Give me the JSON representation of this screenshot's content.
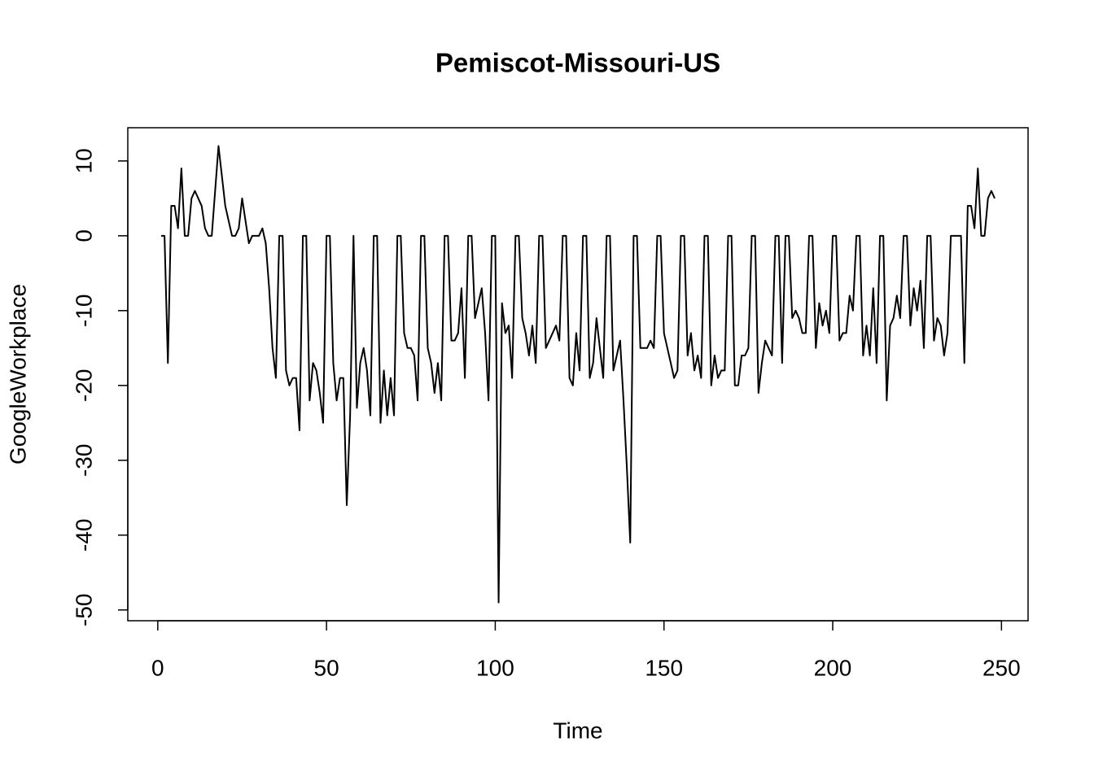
{
  "chart_data": {
    "type": "line",
    "title": "Pemiscot-Missouri-US",
    "x_label": "Time",
    "y_label": "GoogleWorkplace",
    "x": [
      1,
      2,
      3,
      4,
      5,
      6,
      7,
      8,
      9,
      10,
      11,
      12,
      13,
      14,
      15,
      16,
      17,
      18,
      19,
      20,
      21,
      22,
      23,
      24,
      25,
      26,
      27,
      28,
      29,
      30,
      31,
      32,
      33,
      34,
      35,
      36,
      37,
      38,
      39,
      40,
      41,
      42,
      43,
      44,
      45,
      46,
      47,
      48,
      49,
      50,
      51,
      52,
      53,
      54,
      55,
      56,
      57,
      58,
      59,
      60,
      61,
      62,
      63,
      64,
      65,
      66,
      67,
      68,
      69,
      70,
      71,
      72,
      73,
      74,
      75,
      76,
      77,
      78,
      79,
      80,
      81,
      82,
      83,
      84,
      85,
      86,
      87,
      88,
      89,
      90,
      91,
      92,
      93,
      94,
      95,
      96,
      97,
      98,
      99,
      100,
      101,
      102,
      103,
      104,
      105,
      106,
      107,
      108,
      109,
      110,
      111,
      112,
      113,
      114,
      115,
      116,
      117,
      118,
      119,
      120,
      121,
      122,
      123,
      124,
      125,
      126,
      127,
      128,
      129,
      130,
      131,
      132,
      133,
      134,
      135,
      136,
      137,
      138,
      139,
      140,
      141,
      142,
      143,
      144,
      145,
      146,
      147,
      148,
      149,
      150,
      151,
      152,
      153,
      154,
      155,
      156,
      157,
      158,
      159,
      160,
      161,
      162,
      163,
      164,
      165,
      166,
      167,
      168,
      169,
      170,
      171,
      172,
      173,
      174,
      175,
      176,
      177,
      178,
      179,
      180,
      181,
      182,
      183,
      184,
      185,
      186,
      187,
      188,
      189,
      190,
      191,
      192,
      193,
      194,
      195,
      196,
      197,
      198,
      199,
      200,
      201,
      202,
      203,
      204,
      205,
      206,
      207,
      208,
      209,
      210,
      211,
      212,
      213,
      214,
      215,
      216,
      217,
      218,
      219,
      220,
      221,
      222,
      223,
      224,
      225,
      226,
      227,
      228,
      229,
      230,
      231,
      232,
      233,
      234,
      235,
      236,
      237,
      238,
      239,
      240,
      241,
      242,
      243,
      244,
      245,
      246,
      247,
      248
    ],
    "series": [
      {
        "name": "GoogleWorkplace",
        "color": "#000000",
        "values": [
          0,
          0,
          -17,
          4,
          4,
          1,
          9,
          0,
          0,
          5,
          6,
          5,
          4,
          1,
          0,
          0,
          6,
          12,
          8,
          4,
          2,
          0,
          0,
          1,
          5,
          2,
          -1,
          0,
          0,
          0,
          1,
          -1,
          -7,
          -15,
          -19,
          0,
          0,
          -18,
          -20,
          -19,
          -19,
          -26,
          0,
          0,
          -22,
          -17,
          -18,
          -21,
          -25,
          0,
          0,
          -17,
          -22,
          -19,
          -19,
          -36,
          -24,
          0,
          -23,
          -17,
          -15,
          -18,
          -24,
          0,
          0,
          -25,
          -18,
          -24,
          -19,
          -24,
          0,
          0,
          -13,
          -15,
          -15,
          -16,
          -22,
          0,
          0,
          -15,
          -17,
          -21,
          -17,
          -22,
          0,
          0,
          -14,
          -14,
          -13,
          -7,
          -19,
          0,
          0,
          -11,
          -9,
          -7,
          -13,
          -22,
          0,
          0,
          -49,
          -9,
          -13,
          -12,
          -19,
          0,
          0,
          -11,
          -13,
          -16,
          -12,
          -17,
          0,
          0,
          -15,
          -14,
          -13,
          -12,
          -14,
          0,
          0,
          -19,
          -20,
          -13,
          -18,
          0,
          0,
          -19,
          -17,
          -11,
          -15,
          -19,
          0,
          0,
          -18,
          -16,
          -14,
          -22,
          -31,
          -41,
          0,
          0,
          -15,
          -15,
          -15,
          -14,
          -15,
          0,
          0,
          -13,
          -15,
          -17,
          -19,
          -18,
          0,
          0,
          -16,
          -13,
          -18,
          -16,
          -19,
          0,
          0,
          -20,
          -16,
          -19,
          -18,
          -18,
          0,
          0,
          -20,
          -20,
          -16,
          -16,
          -15,
          0,
          0,
          -21,
          -17,
          -14,
          -15,
          -16,
          0,
          0,
          -17,
          0,
          0,
          -11,
          -10,
          -11,
          -13,
          -13,
          0,
          0,
          -15,
          -9,
          -12,
          -10,
          -13,
          0,
          0,
          -14,
          -13,
          -13,
          -8,
          -10,
          0,
          0,
          -16,
          -12,
          -16,
          -7,
          -17,
          0,
          0,
          -22,
          -12,
          -11,
          -8,
          -11,
          0,
          0,
          -12,
          -7,
          -10,
          -6,
          -15,
          0,
          0,
          -14,
          -11,
          -12,
          -16,
          -13,
          0,
          0,
          0,
          0,
          -17,
          4,
          4,
          1,
          9,
          0,
          0,
          5,
          6,
          5
        ]
      }
    ],
    "xlim": [
      -8.88,
      257.88
    ],
    "ylim": [
      -51.44,
      14.44
    ],
    "xticks": [
      0,
      50,
      100,
      150,
      200,
      250
    ],
    "yticks": [
      -50,
      -40,
      -30,
      -20,
      -10,
      0,
      10
    ]
  }
}
